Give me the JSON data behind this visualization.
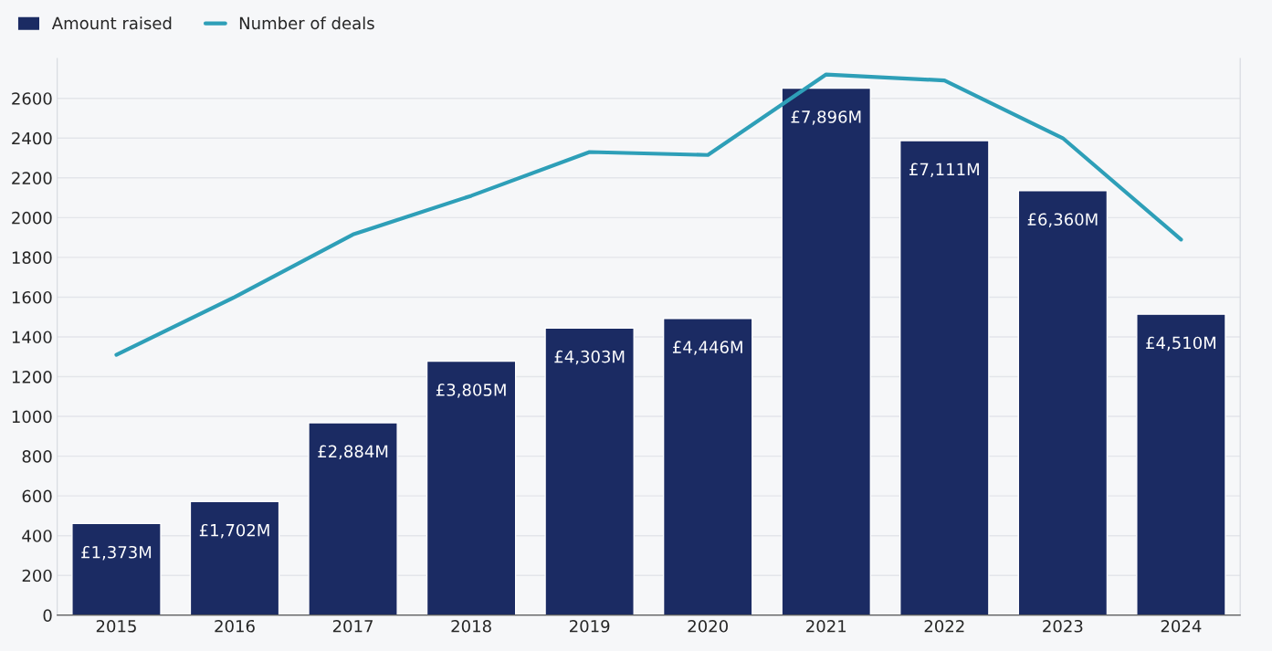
{
  "chart_data": {
    "type": "bar",
    "categories": [
      "2015",
      "2016",
      "2017",
      "2018",
      "2019",
      "2020",
      "2021",
      "2022",
      "2023",
      "2024"
    ],
    "series": [
      {
        "name": "Amount raised",
        "axis": "y2",
        "color": "#1b2b63",
        "values": [
          1373,
          1702,
          2884,
          3805,
          4303,
          4446,
          7896,
          7111,
          6360,
          4510
        ],
        "value_labels": [
          "£1,373M",
          "£1,702M",
          "£2,884M",
          "£3,805M",
          "£4,303M",
          "£4,446M",
          "£7,896M",
          "£7,111M",
          "£6,360M",
          "£4,510M"
        ]
      },
      {
        "name": "Number of deals",
        "type": "line",
        "color": "#2e9fb8",
        "values": [
          1310,
          1600,
          1915,
          2110,
          2330,
          2315,
          2720,
          2690,
          2400,
          1890
        ]
      }
    ],
    "ylim": [
      0,
      2800
    ],
    "yticks": [
      0,
      200,
      400,
      600,
      800,
      1000,
      1200,
      1400,
      1600,
      1800,
      2000,
      2200,
      2400,
      2600
    ],
    "y2lim": [
      0,
      8340
    ],
    "grid": "y",
    "legend": "top left",
    "marker": "none",
    "line_style": "solid"
  }
}
